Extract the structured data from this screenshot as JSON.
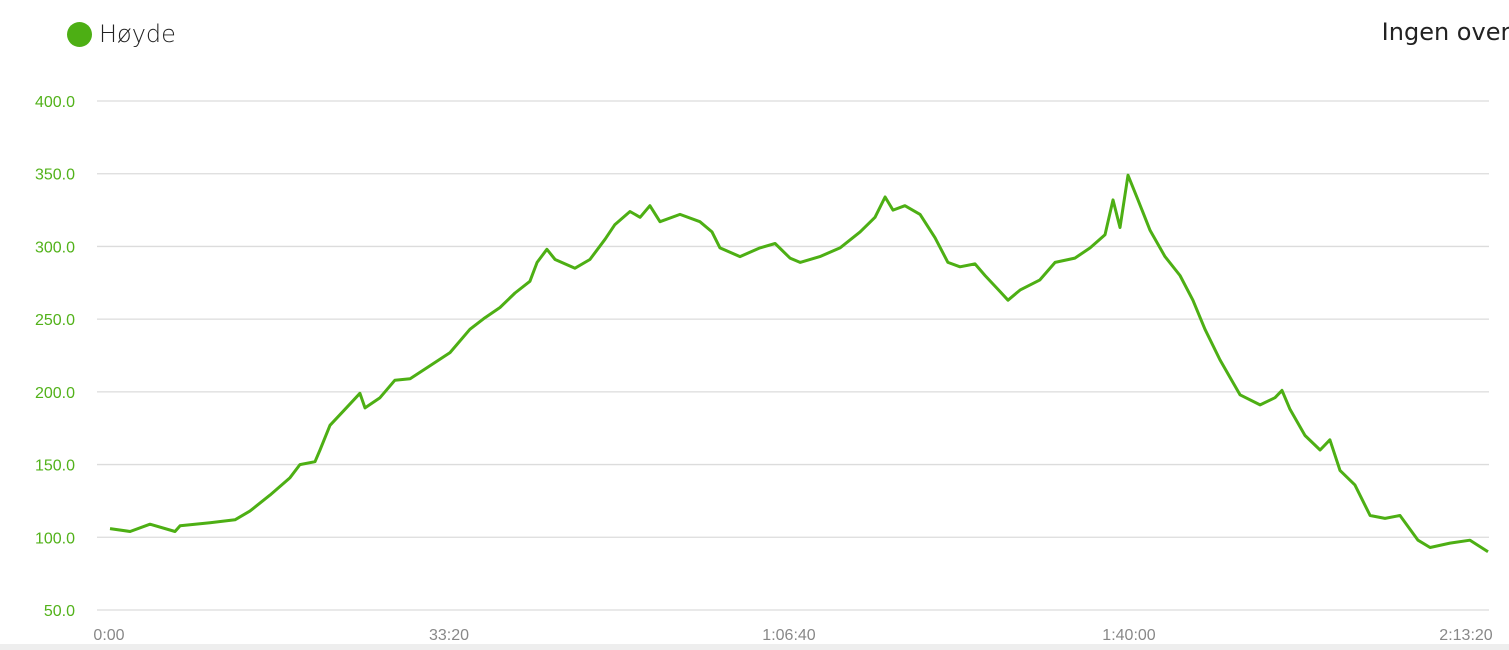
{
  "legend": {
    "label": "Høyde",
    "color": "#4daf14"
  },
  "note": "Ingen overl",
  "chart_data": {
    "type": "line",
    "title": "",
    "xlabel": "",
    "ylabel": "",
    "ylim": [
      50,
      400
    ],
    "xlim": [
      "0:00",
      "2:13:20"
    ],
    "yticks": [
      "400.0",
      "350.0",
      "300.0",
      "250.0",
      "200.0",
      "150.0",
      "100.0",
      "50.0"
    ],
    "xticks": [
      "0:00",
      "33:20",
      "1:06:40",
      "1:40:00",
      "2:13:20"
    ],
    "grid": true,
    "legend_position": "top-left",
    "series": [
      {
        "name": "Høyde",
        "color": "#4daf14",
        "x": [
          "0:06",
          "2:04",
          "4:01",
          "6:28",
          "6:58",
          "9:54",
          "12:21",
          "13:49",
          "15:47",
          "17:45",
          "18:43",
          "20:12",
          "20:41",
          "21:40",
          "23:08",
          "24:36",
          "25:06",
          "26:34",
          "28:02",
          "29:31",
          "31:28",
          "33:26",
          "35:23",
          "36:52",
          "38:20",
          "39:48",
          "41:16",
          "41:58",
          "42:56",
          "43:44",
          "45:41",
          "47:09",
          "48:38",
          "49:36",
          "51:05",
          "52:04",
          "53:02",
          "54:01",
          "55:59",
          "57:56",
          "59:07",
          "59:54",
          "1:01:52",
          "1:03:49",
          "1:05:18",
          "1:06:46",
          "1:07:45",
          "1:09:42",
          "1:11:40",
          "1:13:38",
          "1:15:06",
          "1:16:05",
          "1:16:52",
          "1:18:02",
          "1:19:31",
          "1:20:59",
          "1:22:15",
          "1:23:26",
          "1:24:54",
          "1:25:53",
          "1:27:21",
          "1:28:08",
          "1:29:19",
          "1:31:16",
          "1:32:45",
          "1:34:42",
          "1:36:11",
          "1:37:39",
          "1:38:26",
          "1:39:07",
          "1:39:54",
          "1:40:53",
          "1:42:04",
          "1:43:32",
          "1:45:00",
          "1:46:16",
          "1:47:27",
          "1:48:55",
          "1:50:53",
          "1:52:51",
          "1:54:19",
          "1:55:00",
          "1:55:47",
          "1:57:15",
          "1:58:44",
          "1:59:42",
          "2:00:41",
          "2:02:09",
          "2:03:38",
          "2:05:06",
          "2:06:34",
          "2:08:20",
          "2:09:31",
          "2:11:28",
          "2:13:26",
          "2:15:12"
        ],
        "y": [
          106,
          104,
          109,
          104,
          108,
          110,
          112,
          118,
          129,
          141,
          150,
          152,
          160,
          177,
          188,
          199,
          189,
          196,
          208,
          209,
          218,
          227,
          243,
          251,
          258,
          268,
          276,
          289,
          298,
          291,
          285,
          291,
          305,
          315,
          324,
          320,
          328,
          317,
          322,
          317,
          310,
          299,
          293,
          299,
          302,
          292,
          289,
          293,
          299,
          310,
          320,
          334,
          325,
          328,
          322,
          306,
          289,
          286,
          288,
          280,
          269,
          263,
          270,
          277,
          289,
          292,
          299,
          308,
          332,
          313,
          349,
          332,
          311,
          293,
          280,
          263,
          243,
          222,
          198,
          191,
          196,
          201,
          188,
          170,
          160,
          167,
          146,
          136,
          115,
          113,
          115,
          98,
          93,
          96,
          98,
          90
        ]
      }
    ]
  }
}
